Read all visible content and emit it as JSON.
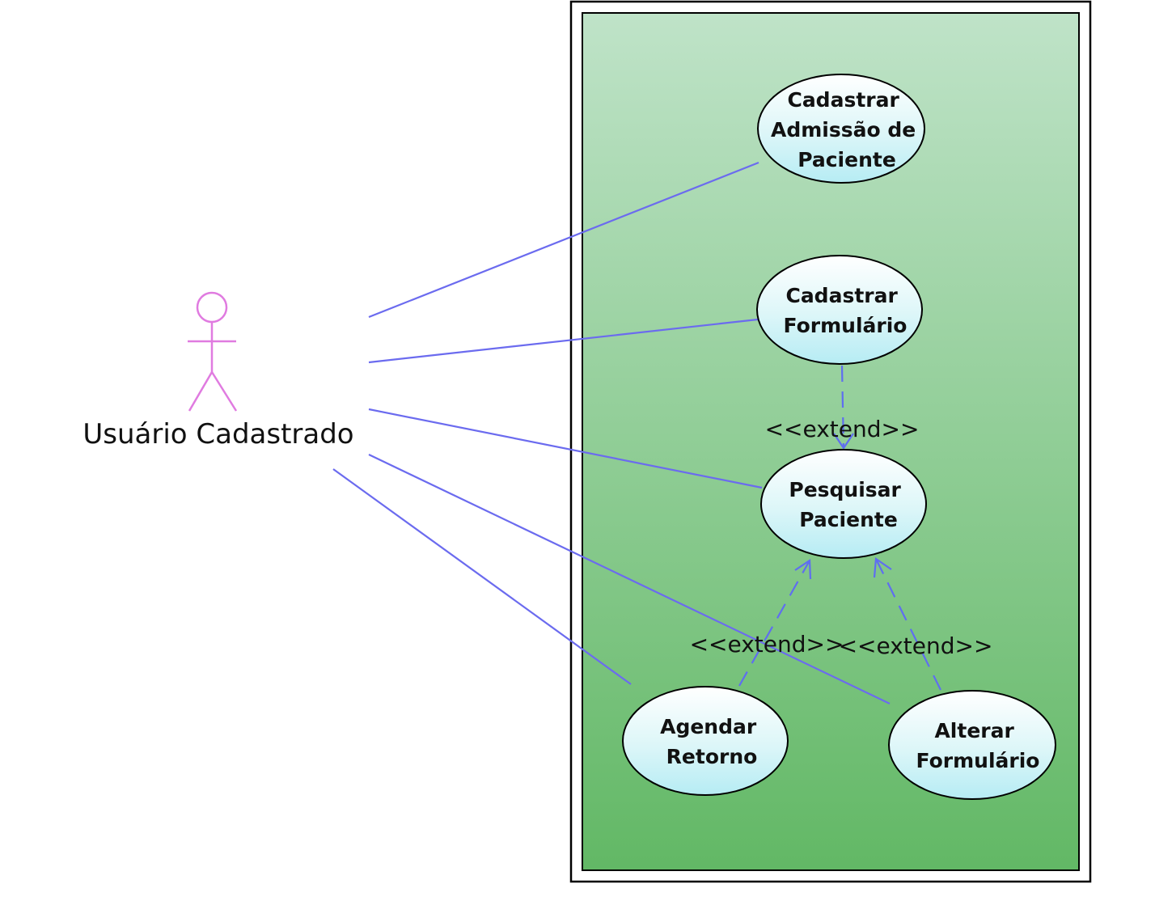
{
  "actor": {
    "name": "Usuário Cadastrado"
  },
  "use_cases": {
    "cadastrar_admissao": {
      "lines": [
        "Cadastrar",
        "Admissão de",
        "Paciente"
      ]
    },
    "cadastrar_formulario": {
      "lines": [
        "Cadastrar",
        "Formulário"
      ]
    },
    "pesquisar_paciente": {
      "lines": [
        "Pesquisar",
        "Paciente"
      ]
    },
    "agendar_retorno": {
      "lines": [
        "Agendar",
        "Retorno"
      ]
    },
    "alterar_formulario": {
      "lines": [
        "Alterar",
        "Formulário"
      ]
    }
  },
  "relations": {
    "extend_formulario_pesquisar": "<<extend>>",
    "extend_agendar_pesquisar": "<<extend>>",
    "extend_alterar_pesquisar": "<<extend>>"
  },
  "colors": {
    "association_line": "#6b6bef",
    "actor_stroke": "#e07be0",
    "boundary_gradient_top": "#bfe3c8",
    "boundary_gradient_bottom": "#62b865",
    "use_case_gradient_top": "#ffffff",
    "use_case_gradient_bottom": "#b6ecf4"
  }
}
